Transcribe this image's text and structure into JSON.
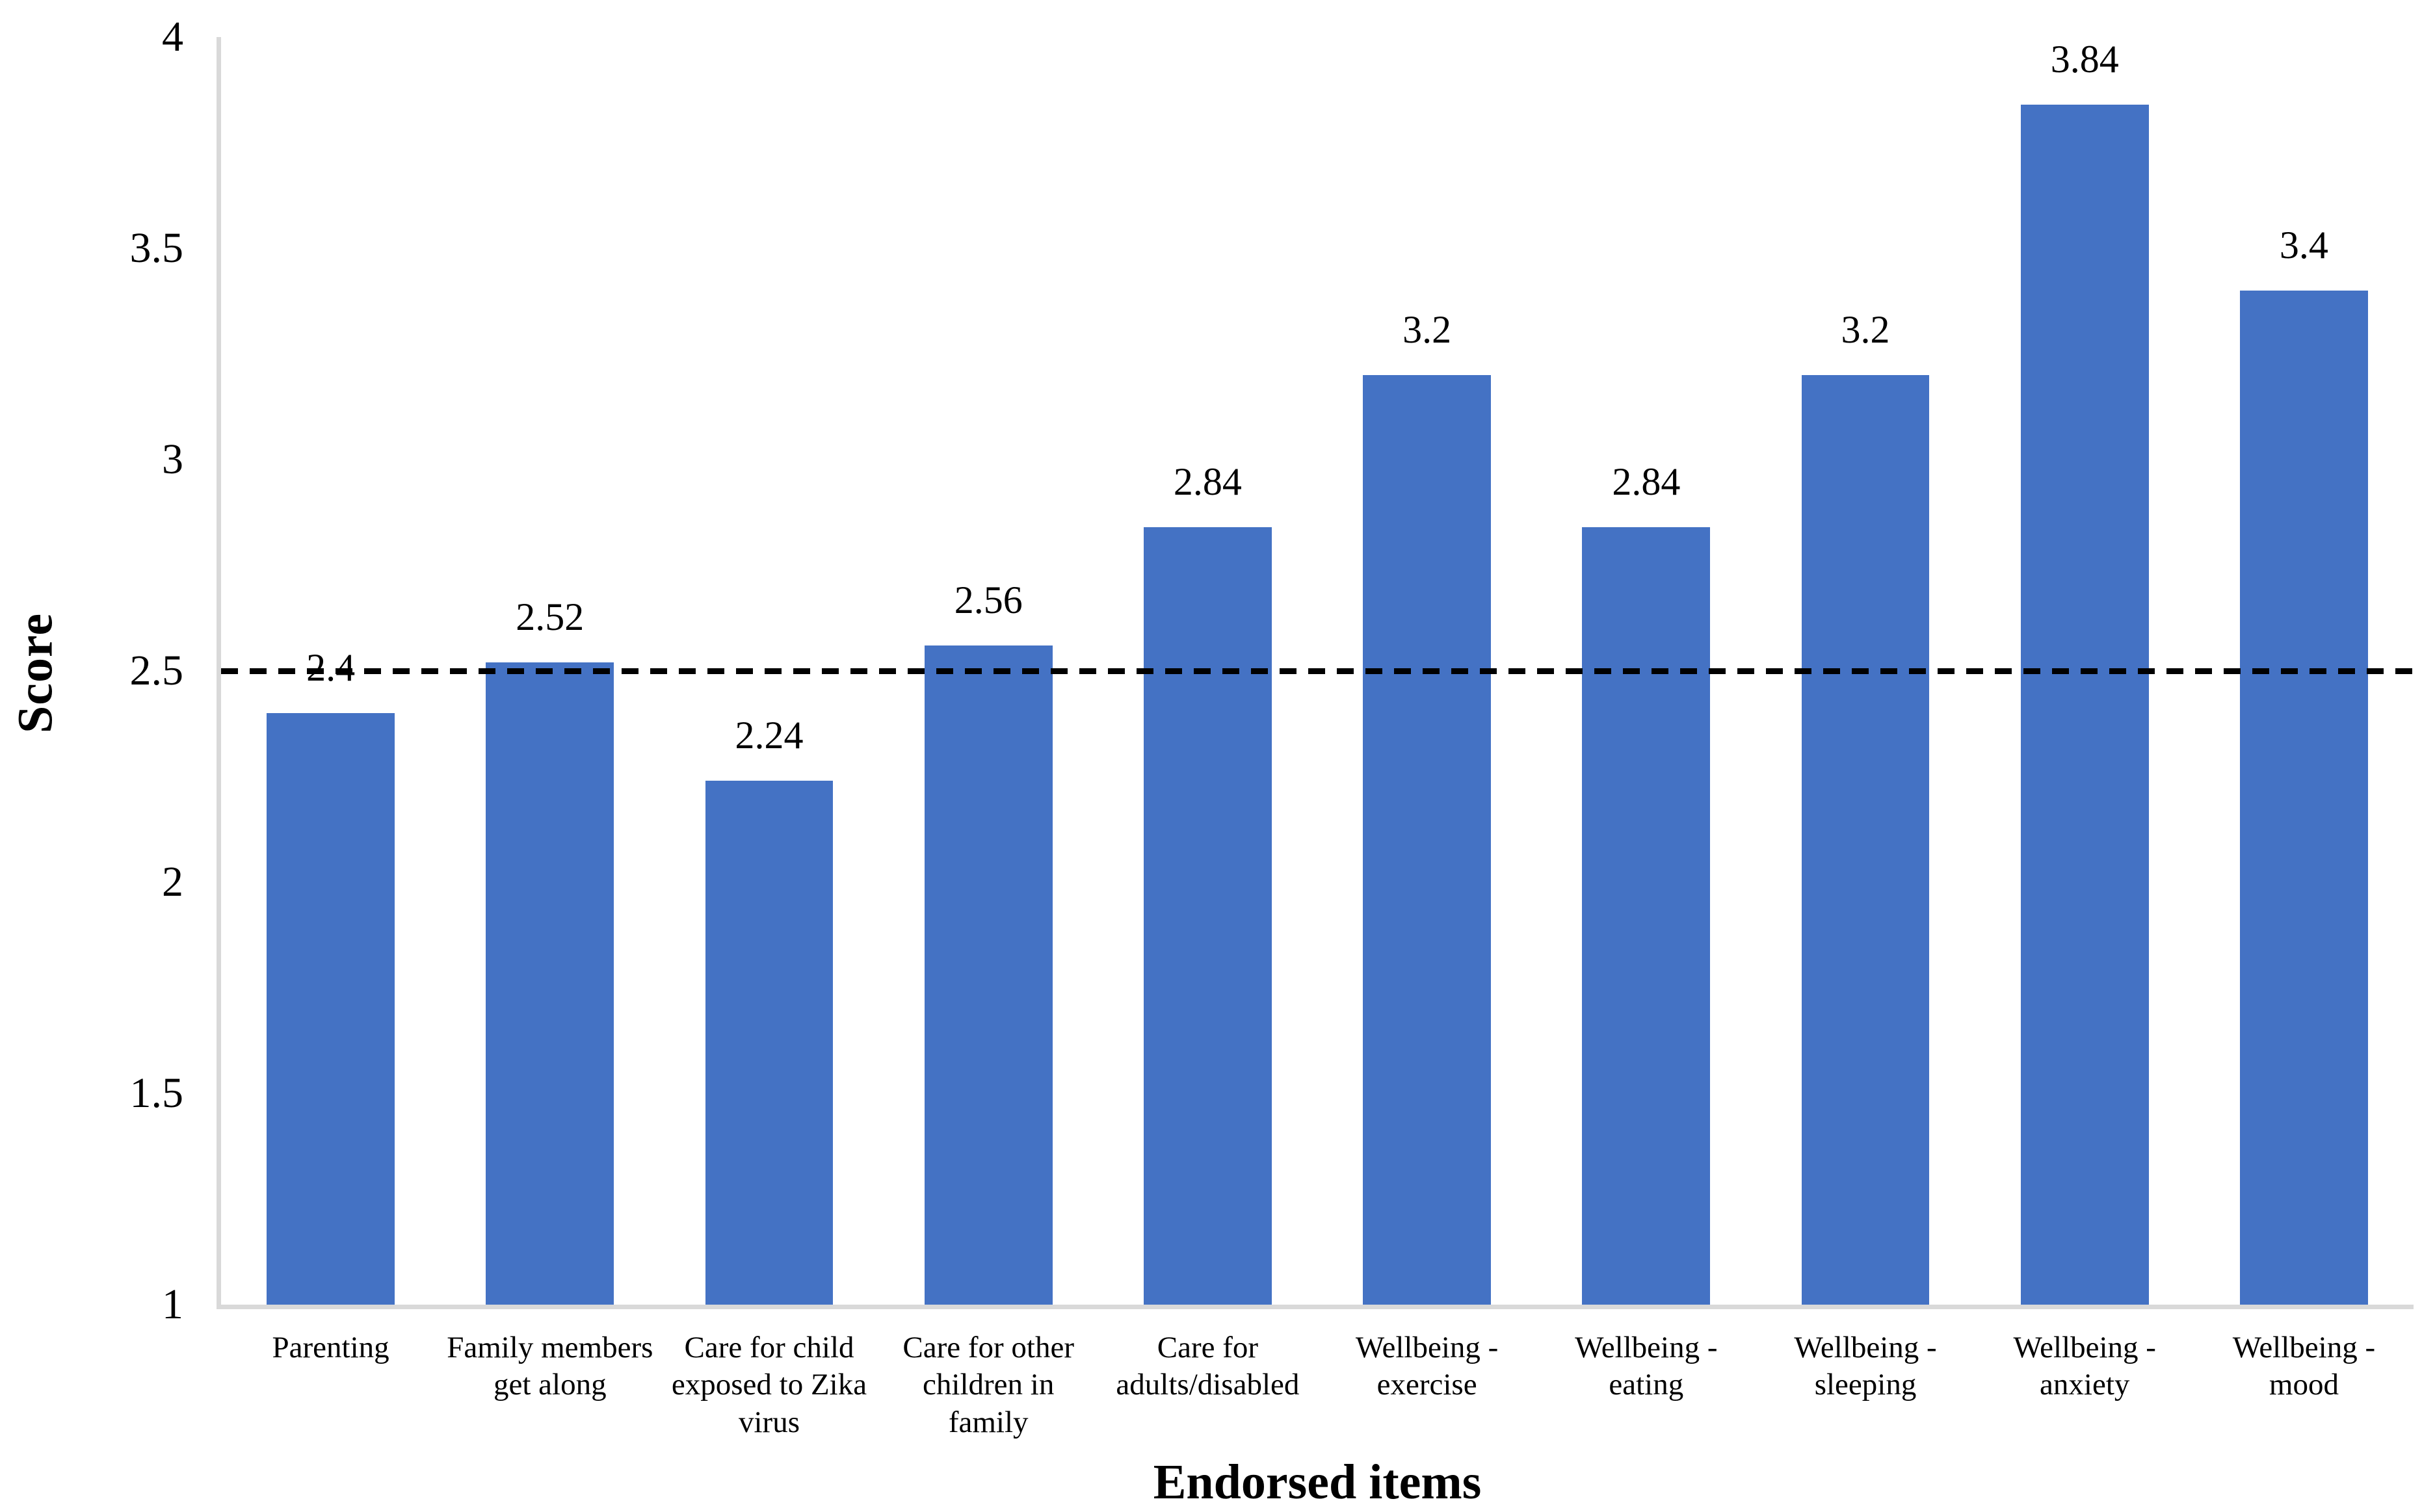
{
  "chart_data": {
    "type": "bar",
    "title": "",
    "xlabel": "Endorsed items",
    "ylabel": "Score",
    "categories": [
      "Parenting",
      "Family members get along",
      "Care for child exposed to Zika virus",
      "Care for other children in family",
      "Care for adults/disabled",
      "Wellbeing - exercise",
      "Wellbeing - eating",
      "Wellbeing - sleeping",
      "Wellbeing - anxiety",
      "Wellbeing - mood"
    ],
    "values": [
      2.4,
      2.52,
      2.24,
      2.56,
      2.84,
      3.2,
      2.84,
      3.2,
      3.84,
      3.4
    ],
    "data_labels": [
      "2.4",
      "2.52",
      "2.24",
      "2.56",
      "2.84",
      "3.2",
      "2.84",
      "3.2",
      "3.84",
      "3.4"
    ],
    "ylim": [
      1,
      4
    ],
    "yticks": [
      {
        "value": 1,
        "label": "1"
      },
      {
        "value": 1.5,
        "label": "1.5"
      },
      {
        "value": 2,
        "label": "2"
      },
      {
        "value": 2.5,
        "label": "2.5"
      },
      {
        "value": 3,
        "label": "3"
      },
      {
        "value": 3.5,
        "label": "3.5"
      },
      {
        "value": 4,
        "label": "4"
      }
    ],
    "reference_line": {
      "value": 2.5,
      "style": "dashed",
      "color": "#000000"
    },
    "bar_color": "#4472C4",
    "axis_color": "#D9D9D9",
    "background_color": "#FFFFFF",
    "grid": false,
    "legend": false
  }
}
